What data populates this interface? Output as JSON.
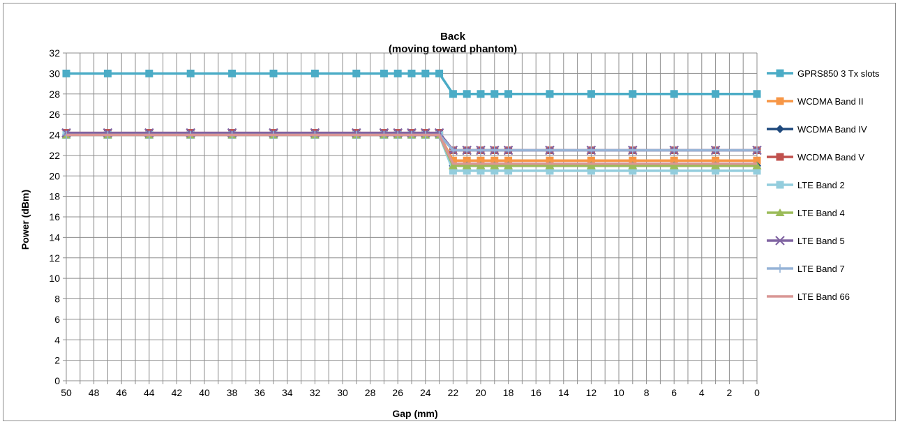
{
  "chart_data": {
    "type": "line",
    "title": "Back",
    "subtitle": "(moving toward phantom)",
    "xlabel": "Gap (mm)",
    "ylabel": "Power (dBm)",
    "x_ticks": [
      50,
      48,
      46,
      44,
      42,
      40,
      38,
      36,
      34,
      32,
      30,
      28,
      26,
      24,
      22,
      20,
      18,
      16,
      14,
      12,
      10,
      8,
      6,
      4,
      2,
      0
    ],
    "y_ticks": [
      0,
      2,
      4,
      6,
      8,
      10,
      12,
      14,
      16,
      18,
      20,
      22,
      24,
      26,
      28,
      30,
      32
    ],
    "xlim": [
      50,
      0
    ],
    "ylim": [
      0,
      32
    ],
    "x_reversed": true,
    "grid": true,
    "legend_position": "right",
    "x": [
      50,
      47,
      44,
      41,
      38,
      35,
      32,
      29,
      27,
      26,
      25,
      24,
      23,
      22,
      21,
      20,
      19,
      18,
      15,
      12,
      9,
      6,
      3,
      0
    ],
    "series": [
      {
        "name": "GPRS850 3 Tx slots",
        "color": "#4bacc6",
        "marker": "square",
        "values": [
          30,
          30,
          30,
          30,
          30,
          30,
          30,
          30,
          30,
          30,
          30,
          30,
          30,
          28,
          28,
          28,
          28,
          28,
          28,
          28,
          28,
          28,
          28,
          28
        ]
      },
      {
        "name": "WCDMA Band II",
        "color": "#f79646",
        "marker": "square",
        "values": [
          24,
          24,
          24,
          24,
          24,
          24,
          24,
          24,
          24,
          24,
          24,
          24,
          24,
          21.5,
          21.5,
          21.5,
          21.5,
          21.5,
          21.5,
          21.5,
          21.5,
          21.5,
          21.5,
          21.5
        ]
      },
      {
        "name": "WCDMA Band IV",
        "color": "#1f497d",
        "marker": "diamond",
        "values": [
          24,
          24,
          24,
          24,
          24,
          24,
          24,
          24,
          24,
          24,
          24,
          24,
          24,
          21,
          21,
          21,
          21,
          21,
          21,
          21,
          21,
          21,
          21,
          21
        ]
      },
      {
        "name": "WCDMA Band V",
        "color": "#c0504d",
        "marker": "square",
        "values": [
          24.2,
          24.2,
          24.2,
          24.2,
          24.2,
          24.2,
          24.2,
          24.2,
          24.2,
          24.2,
          24.2,
          24.2,
          24.2,
          22.5,
          22.5,
          22.5,
          22.5,
          22.5,
          22.5,
          22.5,
          22.5,
          22.5,
          22.5,
          22.5
        ]
      },
      {
        "name": "LTE Band 2",
        "color": "#93cddd",
        "marker": "square",
        "values": [
          24,
          24,
          24,
          24,
          24,
          24,
          24,
          24,
          24,
          24,
          24,
          24,
          24,
          20.5,
          20.5,
          20.5,
          20.5,
          20.5,
          20.5,
          20.5,
          20.5,
          20.5,
          20.5,
          20.5
        ]
      },
      {
        "name": "LTE Band 4",
        "color": "#9bbb59",
        "marker": "triangle",
        "values": [
          24,
          24,
          24,
          24,
          24,
          24,
          24,
          24,
          24,
          24,
          24,
          24,
          24,
          21,
          21,
          21,
          21,
          21,
          21,
          21,
          21,
          21,
          21,
          21
        ]
      },
      {
        "name": "LTE Band 5",
        "color": "#8064a2",
        "marker": "x",
        "values": [
          24.2,
          24.2,
          24.2,
          24.2,
          24.2,
          24.2,
          24.2,
          24.2,
          24.2,
          24.2,
          24.2,
          24.2,
          24.2,
          22.5,
          22.5,
          22.5,
          22.5,
          22.5,
          22.5,
          22.5,
          22.5,
          22.5,
          22.5,
          22.5
        ]
      },
      {
        "name": "LTE Band 7",
        "color": "#95b3d7",
        "marker": "plus",
        "values": [
          24,
          24,
          24,
          24,
          24,
          24,
          24,
          24,
          24,
          24,
          24,
          24,
          24,
          22.5,
          22.5,
          22.5,
          22.5,
          22.5,
          22.5,
          22.5,
          22.5,
          22.5,
          22.5,
          22.5
        ]
      },
      {
        "name": "LTE Band 66",
        "color": "#d99694",
        "marker": "none",
        "values": [
          24,
          24,
          24,
          24,
          24,
          24,
          24,
          24,
          24,
          24,
          24,
          24,
          24,
          21.2,
          21.2,
          21.2,
          21.2,
          21.2,
          21.2,
          21.2,
          21.2,
          21.2,
          21.2,
          21.2
        ]
      }
    ]
  }
}
